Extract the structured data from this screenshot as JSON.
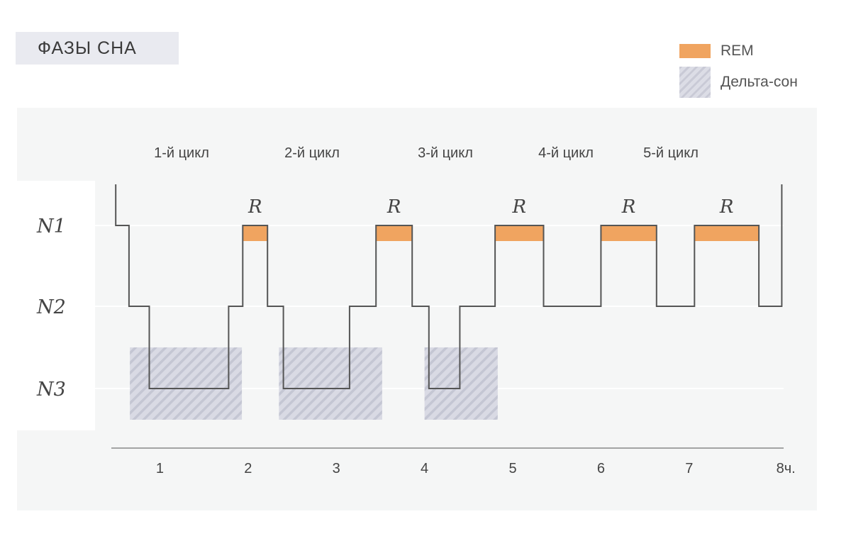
{
  "title": "ФАЗЫ СНА",
  "legend": {
    "rem_label": "REM",
    "delta_label": "Дельта-сон"
  },
  "colors": {
    "rem": "#f0a460",
    "delta": "#cfd0dc",
    "line": "#555555",
    "background": "#f5f6f6"
  },
  "chart_data": {
    "type": "line",
    "title": "ФАЗЫ СНА",
    "xlabel": "",
    "ylabel": "",
    "x_unit": "ч.",
    "x_ticks": [
      1,
      2,
      3,
      4,
      5,
      6,
      7,
      8
    ],
    "x_tick_labels": [
      "1",
      "2",
      "3",
      "4",
      "5",
      "6",
      "7",
      "8ч."
    ],
    "y_levels": [
      "N1",
      "N2",
      "N3"
    ],
    "xlim": [
      0.5,
      8.3
    ],
    "cycles": [
      "1-й цикл",
      "2-й цикл",
      "3-й цикл",
      "4-й цикл",
      "5-й цикл"
    ],
    "rem_label": "R",
    "hypnogram": [
      [
        0.5,
        0.3
      ],
      [
        0.65,
        0.3
      ],
      [
        0.65,
        2
      ],
      [
        0.88,
        2
      ],
      [
        0.88,
        3
      ],
      [
        1.78,
        3
      ],
      [
        1.78,
        2
      ],
      [
        1.94,
        2
      ],
      [
        1.94,
        1
      ],
      [
        2.22,
        1
      ],
      [
        2.22,
        2
      ],
      [
        2.4,
        2
      ],
      [
        2.4,
        3
      ],
      [
        3.15,
        3
      ],
      [
        3.15,
        2
      ],
      [
        3.45,
        2
      ],
      [
        3.45,
        1
      ],
      [
        3.86,
        1
      ],
      [
        3.86,
        2
      ],
      [
        4.05,
        2
      ],
      [
        4.05,
        3
      ],
      [
        4.4,
        3
      ],
      [
        4.4,
        2
      ],
      [
        4.8,
        2
      ],
      [
        4.8,
        1
      ],
      [
        5.35,
        1
      ],
      [
        5.35,
        2
      ],
      [
        6.0,
        2
      ],
      [
        6.0,
        1
      ],
      [
        6.63,
        1
      ],
      [
        6.63,
        2
      ],
      [
        7.06,
        2
      ],
      [
        7.06,
        1
      ],
      [
        7.79,
        1
      ],
      [
        7.79,
        2
      ],
      [
        8.05,
        2
      ],
      [
        8.05,
        0
      ]
    ],
    "rem_periods": [
      [
        1.94,
        2.22
      ],
      [
        3.45,
        3.86
      ],
      [
        4.8,
        5.35
      ],
      [
        6.0,
        6.63
      ],
      [
        7.06,
        7.79
      ]
    ],
    "delta_periods": [
      [
        0.66,
        1.93
      ],
      [
        2.35,
        3.52
      ],
      [
        4.0,
        4.83
      ]
    ]
  }
}
